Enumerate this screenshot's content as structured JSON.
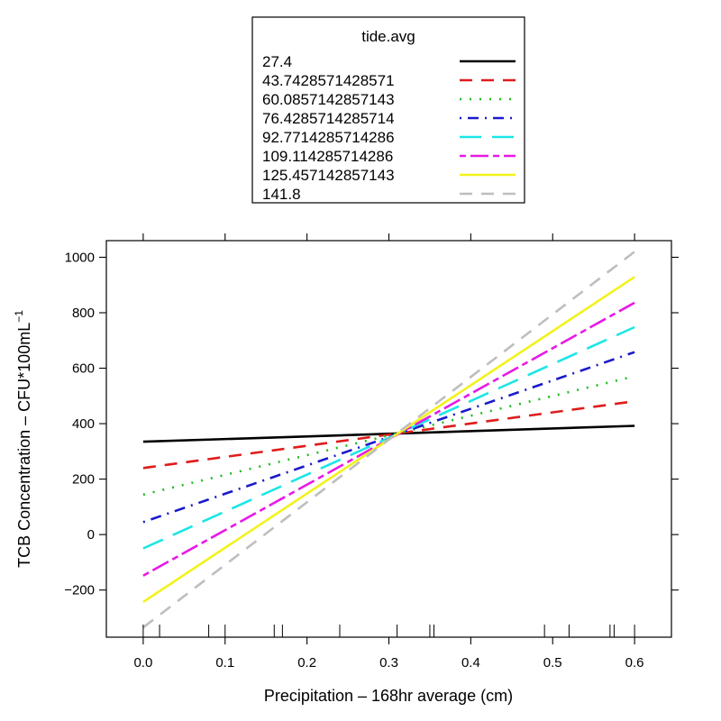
{
  "chart_data": {
    "type": "line",
    "xlabel": "Precipitation – 168hr average (cm)",
    "ylabel": "TCB Concentration – CFU*100mL",
    "ylabel_superscript": "−1",
    "xlim": [
      -0.045,
      0.645
    ],
    "ylim": [
      -370,
      1060
    ],
    "x_ticks": [
      "0.0",
      "0.1",
      "0.2",
      "0.3",
      "0.4",
      "0.5",
      "0.6"
    ],
    "y_ticks": [
      "−200",
      "0",
      "200",
      "400",
      "600",
      "800",
      "1000"
    ],
    "rug_x": [
      0.0,
      0.02,
      0.08,
      0.1,
      0.16,
      0.17,
      0.24,
      0.31,
      0.35,
      0.355,
      0.49,
      0.52,
      0.57,
      0.575,
      0.6
    ],
    "legend": {
      "title": "tide.avg",
      "placement": "top-center"
    },
    "series": [
      {
        "name": "27.4",
        "color": "#000000",
        "dash": "solid",
        "x": [
          0.0,
          0.6
        ],
        "y": [
          335,
          392
        ]
      },
      {
        "name": "43.7428571428571",
        "color": "#df1c1c",
        "dash": "dashed",
        "x": [
          0.0,
          0.6
        ],
        "y": [
          240,
          481
        ]
      },
      {
        "name": "60.0857142857143",
        "color": "#22bb22",
        "dash": "dotted",
        "x": [
          0.0,
          0.6
        ],
        "y": [
          144,
          571
        ]
      },
      {
        "name": "76.4285714285714",
        "color": "#1a1acc",
        "dash": "dotdash",
        "x": [
          0.0,
          0.6
        ],
        "y": [
          45,
          658
        ]
      },
      {
        "name": "92.7714285714286",
        "color": "#1ae6e6",
        "dash": "longdash",
        "x": [
          0.0,
          0.6
        ],
        "y": [
          -50,
          748
        ]
      },
      {
        "name": "109.114285714286",
        "color": "#e61ae6",
        "dash": "twodash",
        "x": [
          0.0,
          0.6
        ],
        "y": [
          -148,
          836
        ]
      },
      {
        "name": "125.457142857143",
        "color": "#f2f21a",
        "dash": "solid",
        "x": [
          0.0,
          0.6
        ],
        "y": [
          -243,
          929
        ]
      },
      {
        "name": "141.8",
        "color": "#bebebe",
        "dash": "dashed",
        "x": [
          0.0,
          0.6
        ],
        "y": [
          -335,
          1020
        ]
      }
    ]
  }
}
